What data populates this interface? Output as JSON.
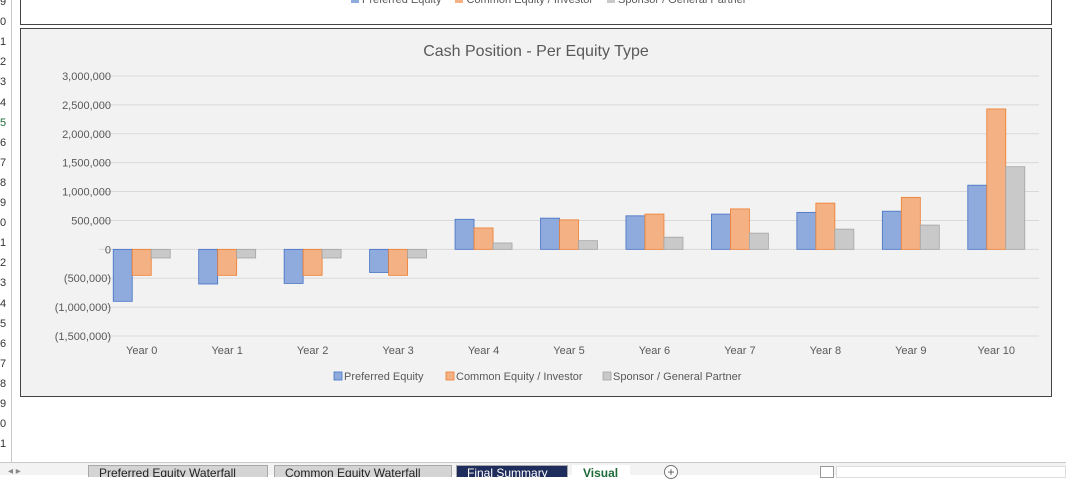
{
  "row_numbers": [
    "9",
    "0",
    "1",
    "2",
    "3",
    "4",
    "5",
    "6",
    "7",
    "8",
    "9",
    "0",
    "1",
    "2",
    "3",
    "4",
    "5",
    "6",
    "7",
    "8",
    "9",
    "0",
    "1"
  ],
  "selected_row_index": 6,
  "top_chart": {
    "legend_labels": [
      "Preferred Equity",
      "Common Equity / Investor",
      "Sponsor / General Partner"
    ]
  },
  "chart_data": {
    "type": "bar",
    "title": "Cash Position - Per Equity Type",
    "xlabel": "",
    "ylabel": "",
    "categories": [
      "Year 0",
      "Year 1",
      "Year 2",
      "Year 3",
      "Year 4",
      "Year 5",
      "Year 6",
      "Year 7",
      "Year 8",
      "Year 9",
      "Year 10"
    ],
    "series": [
      {
        "name": "Preferred Equity",
        "color": "#8faadc",
        "border": "#4472c4",
        "values": [
          -900000,
          -600000,
          -590000,
          -400000,
          520000,
          540000,
          580000,
          610000,
          640000,
          660000,
          1110000
        ]
      },
      {
        "name": "Common Equity / Investor",
        "color": "#f4b183",
        "border": "#ed7d31",
        "values": [
          -450000,
          -450000,
          -450000,
          -450000,
          370000,
          510000,
          610000,
          700000,
          800000,
          900000,
          2430000
        ]
      },
      {
        "name": "Sponsor / General Partner",
        "color": "#c9c9c9",
        "border": "#a5a5a5",
        "values": [
          -150000,
          -150000,
          -150000,
          -150000,
          110000,
          150000,
          210000,
          280000,
          350000,
          420000,
          1430000
        ]
      }
    ],
    "ylim": [
      -1500000,
      3000000
    ],
    "y_ticks": [
      3000000,
      2500000,
      2000000,
      1500000,
      1000000,
      500000,
      0,
      -500000,
      -1000000,
      -1500000
    ],
    "y_tick_labels": [
      "3,000,000",
      "2,500,000",
      "2,000,000",
      "1,500,000",
      "1,000,000",
      "500,000",
      "0",
      "(500,000)",
      "(1,000,000)",
      "(1,500,000)"
    ],
    "grid": true,
    "legend_position": "bottom"
  },
  "sheet_tabs": [
    {
      "label": "Preferred Equity Waterfall",
      "active": false
    },
    {
      "label": "Common Equity Waterfall",
      "active": false
    },
    {
      "label": "Final Summary",
      "active": false
    },
    {
      "label": "Visual",
      "active": true
    }
  ],
  "add_sheet_label": "+",
  "nav_label": "◂ ▸"
}
